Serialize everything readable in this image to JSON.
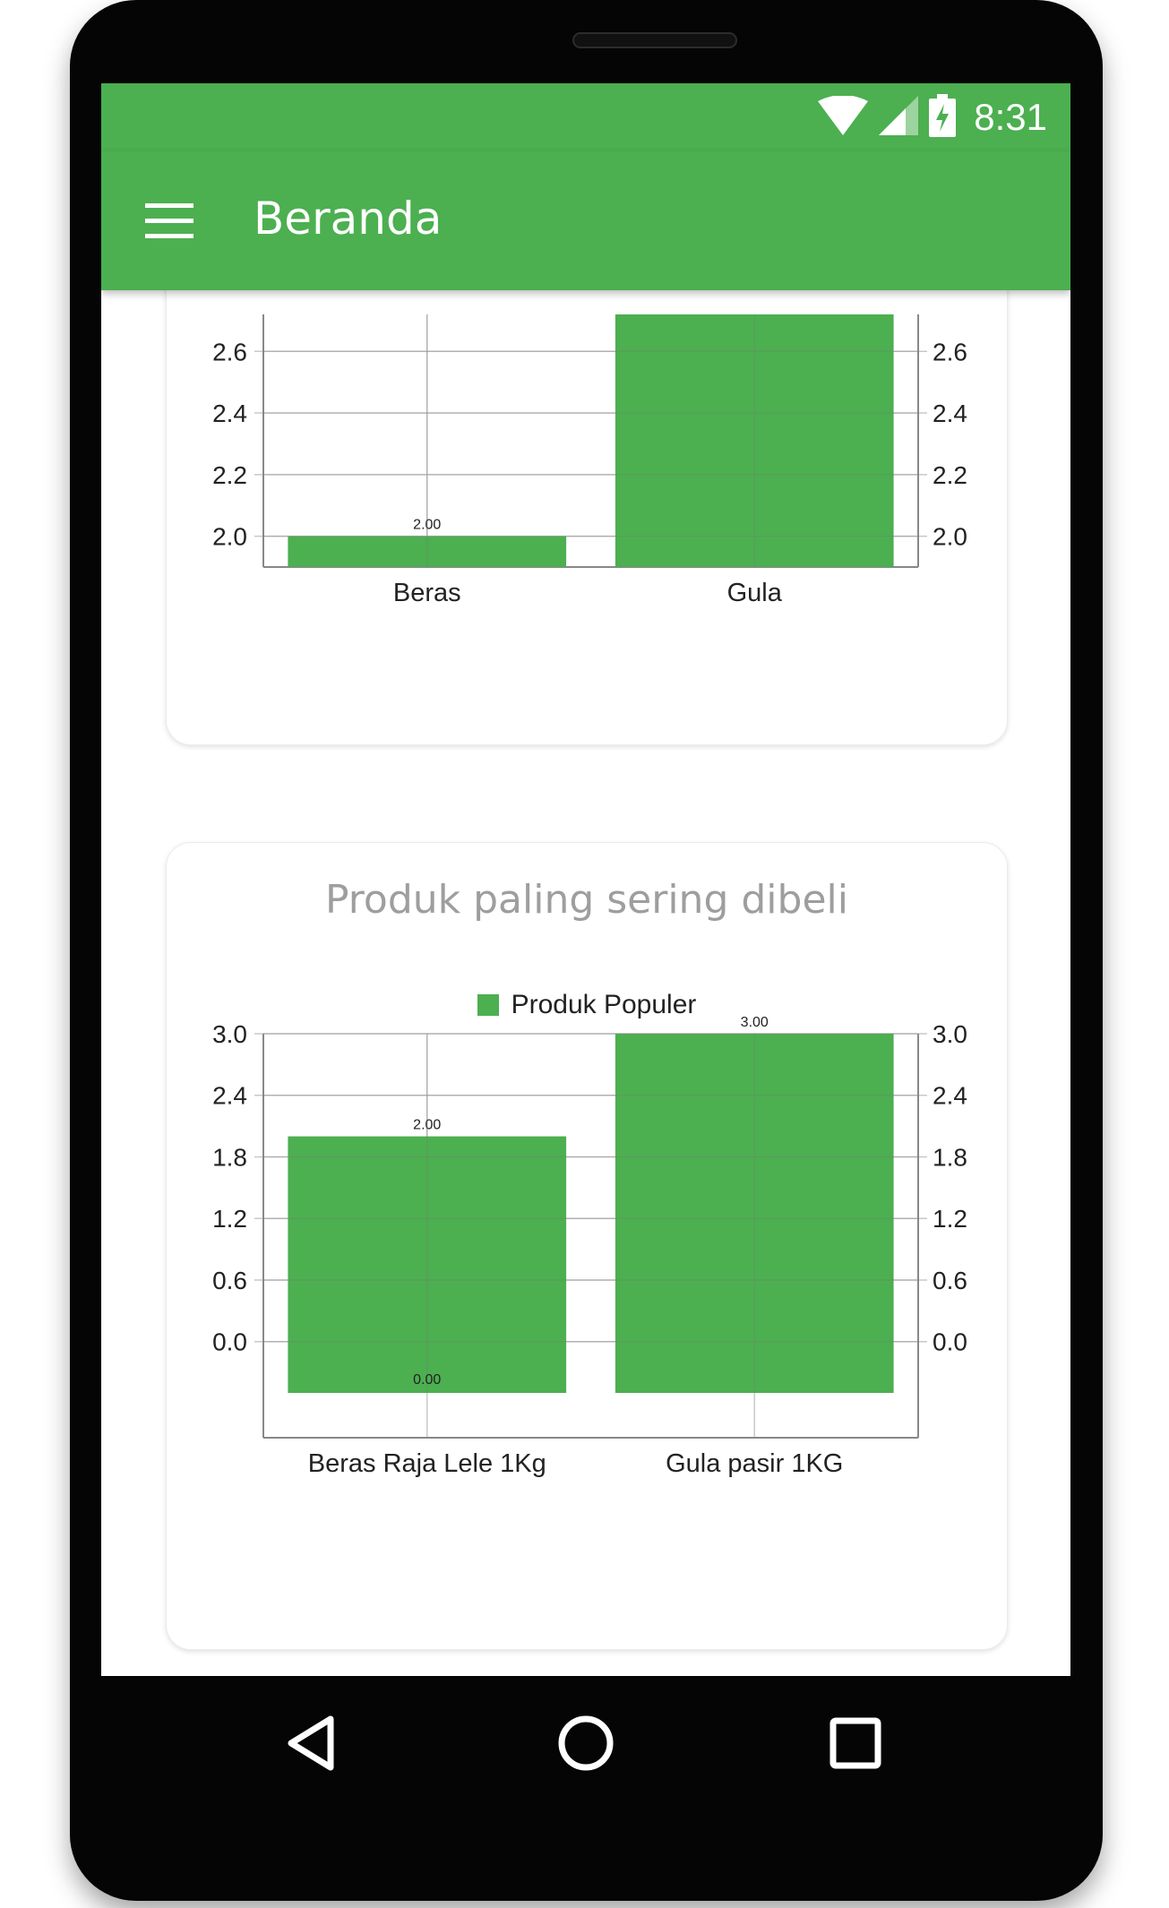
{
  "status_bar": {
    "time": "8:31",
    "icons": [
      "wifi-icon",
      "signal-icon",
      "battery-charging-icon"
    ]
  },
  "app_bar": {
    "title": "Beranda",
    "menu_icon": "menu-icon"
  },
  "colors": {
    "accent": "#4caf50",
    "bar": "#4caf50",
    "grid": "#c8c8c8",
    "card_title": "#9e9e9e"
  },
  "cards": [
    {
      "title": ""
    },
    {
      "title": "Produk paling sering dibeli",
      "legend": "Produk Populer"
    }
  ],
  "chart_data": [
    {
      "type": "bar",
      "categories": [
        "Beras",
        "Gula"
      ],
      "values": [
        2.0,
        2.72
      ],
      "value_labels": [
        "2.00",
        ""
      ],
      "y_ticks": [
        "2.0",
        "2.2",
        "2.4",
        "2.6"
      ],
      "ylim": [
        1.9,
        2.72
      ],
      "dual_axis": true,
      "grid": true,
      "legend": "none"
    },
    {
      "type": "bar",
      "title": "Produk paling sering dibeli",
      "categories": [
        "Beras Raja Lele 1Kg",
        "Gula pasir 1KG"
      ],
      "series": [
        {
          "name": "Produk Populer",
          "values": [
            2.0,
            3.0
          ]
        }
      ],
      "value_labels": [
        "2.00",
        "3.00"
      ],
      "extra_labels": [
        "0.00"
      ],
      "y_ticks": [
        "0.0",
        "0.6",
        "1.2",
        "1.8",
        "2.4",
        "3.0"
      ],
      "ylim": [
        -0.5,
        3.0
      ],
      "dual_axis": true,
      "grid": true,
      "legend": "top-center"
    }
  ],
  "nav_bar": {
    "icons": [
      "back-icon",
      "home-icon",
      "recents-icon"
    ]
  }
}
